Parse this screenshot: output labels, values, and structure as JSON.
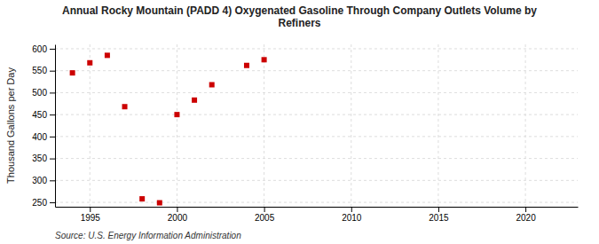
{
  "chart_data": {
    "type": "scatter",
    "title": "Annual Rocky Mountain (PADD 4) Oxygenated Gasoline Through Company Outlets Volume by\nRefiners",
    "y_label": "Thousand Gallons per Day",
    "source": "Source: U.S. Energy Information Administration",
    "x": [
      1994,
      1995,
      1996,
      1997,
      1998,
      1999,
      2000,
      2001,
      2002,
      2004,
      2005
    ],
    "values": [
      545,
      568,
      585,
      468,
      258,
      249,
      450,
      483,
      518,
      562,
      575
    ],
    "color": "#cc0000",
    "marker": "square",
    "xlim": [
      1993,
      2023
    ],
    "ylim": [
      240,
      610
    ],
    "xticks": [
      1995,
      2000,
      2005,
      2010,
      2015,
      2020
    ],
    "yticks": [
      250,
      300,
      350,
      400,
      450,
      500,
      550,
      600
    ],
    "grid": true
  }
}
